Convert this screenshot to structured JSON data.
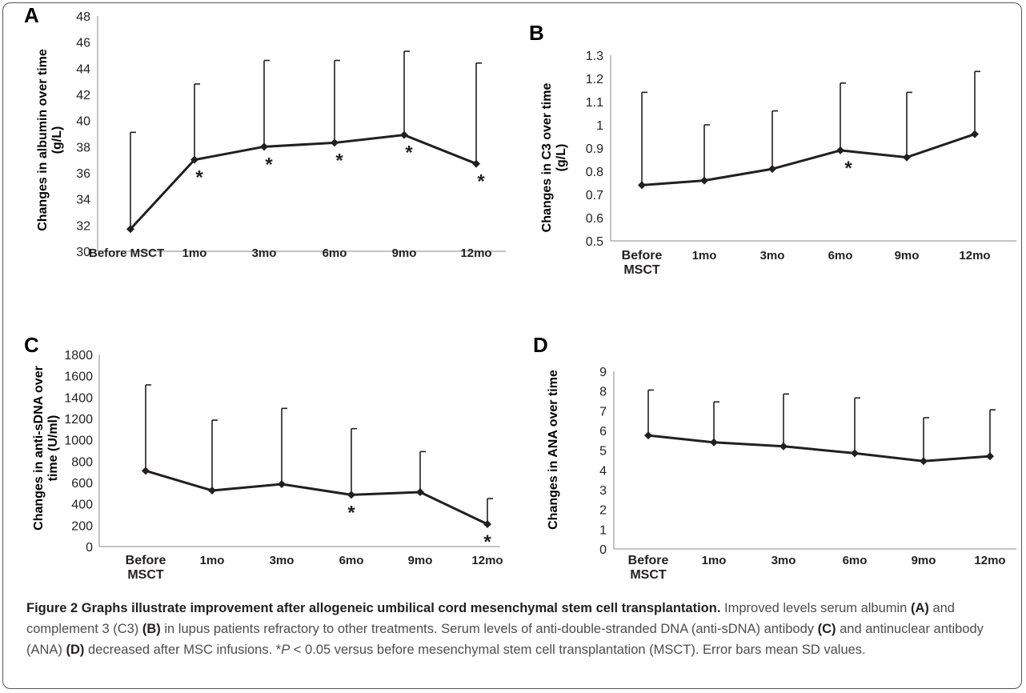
{
  "chart_data": [
    {
      "type": "line",
      "panel": "A",
      "ylabel_lines": [
        "Changes in  albumin over time",
        "(g/L)"
      ],
      "categories": [
        "Before MSCT",
        "1mo",
        "3mo",
        "6mo",
        "9mo",
        "12mo"
      ],
      "category_wrap": false,
      "series": [
        {
          "values": [
            31.7,
            37.0,
            38.0,
            38.3,
            38.9,
            36.7
          ]
        }
      ],
      "error_upper": [
        39.1,
        42.8,
        44.6,
        44.6,
        45.3,
        44.4
      ],
      "significant": [
        false,
        true,
        true,
        true,
        true,
        true
      ],
      "ylim": [
        30,
        48
      ],
      "yticks": [
        30,
        32,
        34,
        36,
        38,
        40,
        42,
        44,
        46,
        48
      ],
      "ytick_labels": [
        "30",
        "32",
        "34",
        "36",
        "38",
        "40",
        "42",
        "44",
        "46",
        "48"
      ]
    },
    {
      "type": "line",
      "panel": "B",
      "ylabel_lines": [
        "Changes in C3 over time",
        "(g/L)"
      ],
      "categories": [
        "Before MSCT",
        "1mo",
        "3mo",
        "6mo",
        "9mo",
        "12mo"
      ],
      "category_wrap": true,
      "series": [
        {
          "values": [
            0.74,
            0.76,
            0.81,
            0.89,
            0.86,
            0.96
          ]
        }
      ],
      "error_upper": [
        1.14,
        1.0,
        1.06,
        1.18,
        1.14,
        1.23
      ],
      "significant": [
        false,
        false,
        false,
        true,
        false,
        false
      ],
      "ylim": [
        0.5,
        1.3
      ],
      "yticks": [
        0.5,
        0.6,
        0.7,
        0.8,
        0.9,
        1.0,
        1.1,
        1.2,
        1.3
      ],
      "ytick_labels": [
        "0.5",
        "0.6",
        "0.7",
        "0.8",
        "0.9",
        "1",
        "1.1",
        "1.2",
        "1.3"
      ]
    },
    {
      "type": "line",
      "panel": "C",
      "ylabel_lines": [
        "Changes in anti-sDNA over",
        "time (U/ml)"
      ],
      "categories": [
        "Before MSCT",
        "1mo",
        "3mo",
        "6mo",
        "9mo",
        "12mo"
      ],
      "category_wrap": true,
      "series": [
        {
          "values": [
            710,
            525,
            585,
            485,
            510,
            210
          ]
        }
      ],
      "error_upper": [
        1515,
        1185,
        1295,
        1105,
        890,
        450
      ],
      "significant": [
        false,
        false,
        false,
        true,
        false,
        true
      ],
      "ylim": [
        0,
        1800
      ],
      "yticks": [
        0,
        200,
        400,
        600,
        800,
        1000,
        1200,
        1400,
        1600,
        1800
      ],
      "ytick_labels": [
        "0",
        "200",
        "400",
        "600",
        "800",
        "1000",
        "1200",
        "1400",
        "1600",
        "1800"
      ]
    },
    {
      "type": "line",
      "panel": "D",
      "ylabel_lines": [
        "Changes in  ANA over time"
      ],
      "categories": [
        "Before MSCT",
        "1mo",
        "3mo",
        "6mo",
        "9mo",
        "12mo"
      ],
      "category_wrap": true,
      "series": [
        {
          "values": [
            5.75,
            5.4,
            5.2,
            4.85,
            4.45,
            4.7
          ]
        }
      ],
      "error_upper": [
        8.05,
        7.45,
        7.85,
        7.65,
        6.65,
        7.05
      ],
      "significant": [
        false,
        false,
        false,
        false,
        false,
        false
      ],
      "ylim": [
        0,
        9
      ],
      "yticks": [
        0,
        1,
        2,
        3,
        4,
        5,
        6,
        7,
        8,
        9
      ],
      "ytick_labels": [
        "0",
        "1",
        "2",
        "3",
        "4",
        "5",
        "6",
        "7",
        "8",
        "9"
      ]
    }
  ],
  "caption": {
    "title": "Figure 2 Graphs illustrate improvement after allogeneic umbilical cord mesenchymal stem cell transplantation.",
    "p1": " Improved levels serum albumin ",
    "a": "(A)",
    "p2": " and complement 3 (C3) ",
    "b": "(B)",
    "p3": " in lupus patients refractory to other treatments. Serum levels of anti-double-stranded DNA (anti-sDNA) antibody ",
    "c": "(C)",
    "p4": " and antinuclear antibody (ANA) ",
    "d": "(D)",
    "p5": " decreased after MSC infusions. *",
    "pvar": "P",
    "p6": " < 0.05 versus before mesenchymal stem cell transplantation (MSCT). Error bars mean SD values."
  }
}
